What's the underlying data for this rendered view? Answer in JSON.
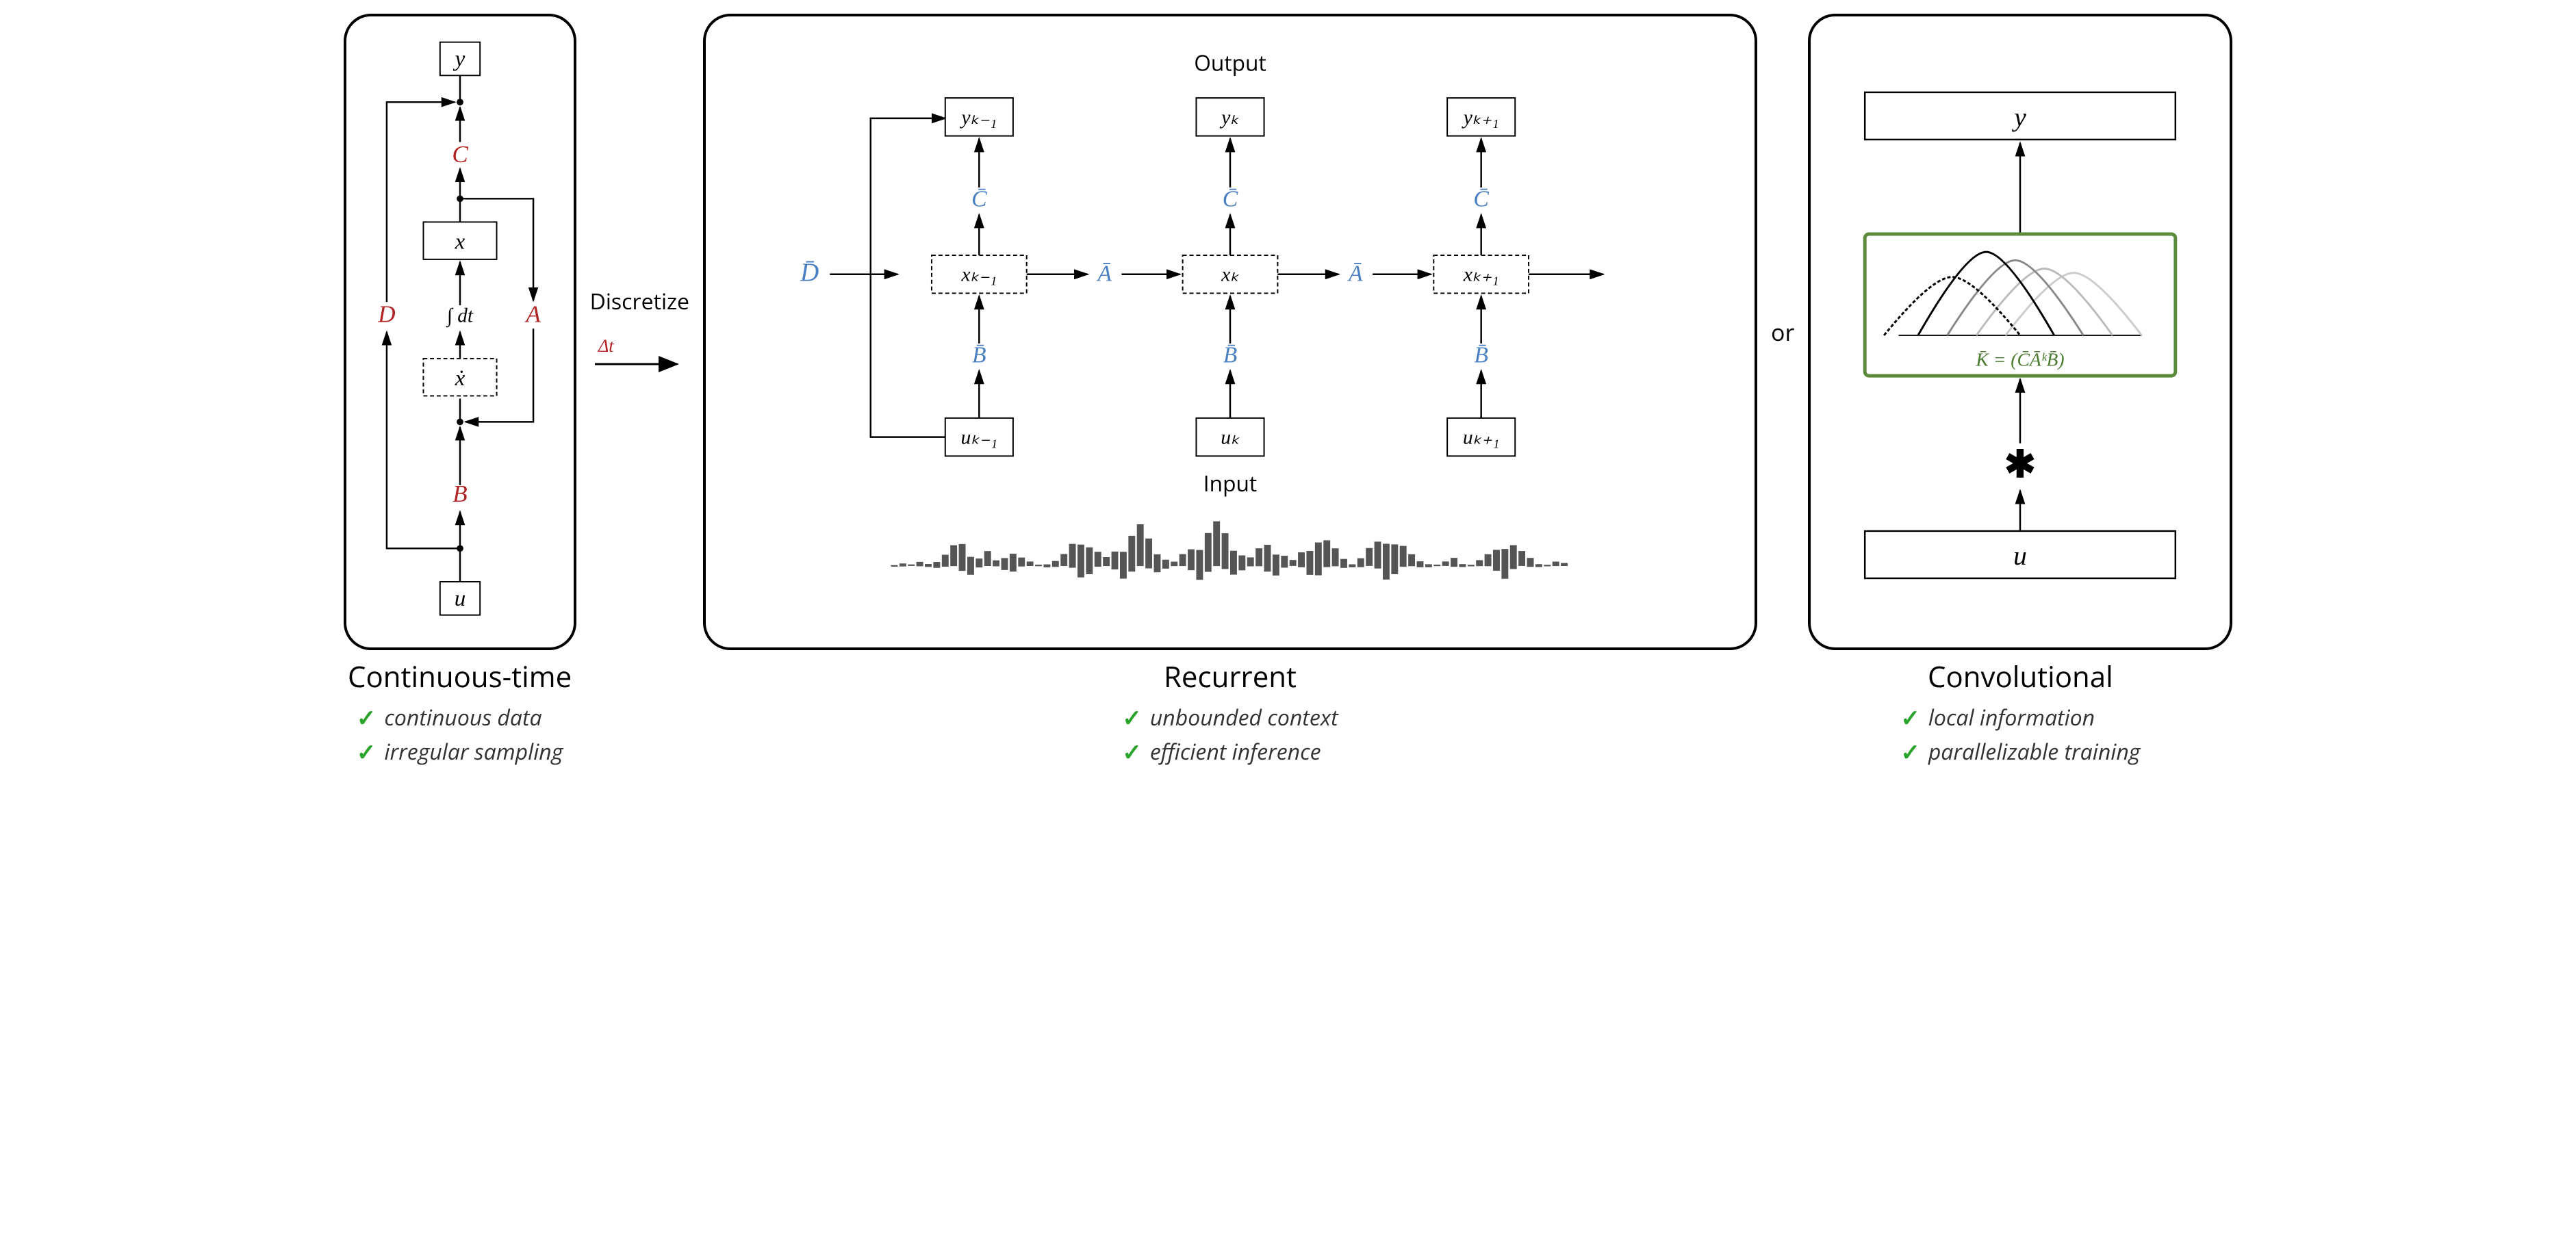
{
  "colors": {
    "black": "#000000",
    "red": "#b22222",
    "blue": "#4a7fc1",
    "green": "#4a7a2e",
    "grey": "#555555",
    "ltgrey": "#bbbbbb",
    "checkGreen": "#29a329"
  },
  "panels": {
    "continuous": {
      "title": "Continuous-time",
      "bullets": [
        "continuous data",
        "irregular sampling"
      ],
      "nodes": {
        "y": "y",
        "u": "u",
        "x": "x",
        "xdot": "ẋ",
        "A": "A",
        "B": "B",
        "C": "C",
        "D": "D",
        "integral": "∫ dt"
      }
    },
    "recurrent": {
      "title": "Recurrent",
      "bullets": [
        "unbounded context",
        "efficient inference"
      ],
      "outputLabel": "Output",
      "inputLabel": "Input",
      "Dbar": "D̄",
      "Abar": "Ā",
      "Bbar": "B̄",
      "Cbar": "C̄",
      "y_km1": "yₖ₋₁",
      "y_k": "yₖ",
      "y_kp1": "yₖ₊₁",
      "x_km1": "xₖ₋₁",
      "x_k": "xₖ",
      "x_kp1": "xₖ₊₁",
      "u_km1": "uₖ₋₁",
      "u_k": "uₖ",
      "u_kp1": "uₖ₊₁"
    },
    "convolutional": {
      "title": "Convolutional",
      "bullets": [
        "local information",
        "parallelizable training"
      ],
      "y": "y",
      "u": "u",
      "kernelEq": "K̄ = (C̄ĀᵏB̄)"
    }
  },
  "connectors": {
    "discretize": "Discretize",
    "delta": "Δt",
    "or": "or"
  },
  "waveform": {
    "color": "#555555",
    "values": [
      1,
      2,
      1,
      3,
      2,
      4,
      8,
      14,
      18,
      12,
      6,
      10,
      4,
      8,
      12,
      6,
      3,
      1,
      2,
      4,
      8,
      16,
      22,
      18,
      10,
      6,
      12,
      18,
      24,
      28,
      20,
      12,
      6,
      3,
      8,
      14,
      20,
      26,
      30,
      24,
      16,
      10,
      6,
      12,
      18,
      14,
      8,
      4,
      10,
      16,
      22,
      18,
      12,
      6,
      2,
      6,
      12,
      18,
      24,
      20,
      14,
      8,
      4,
      2,
      1,
      3,
      6,
      2,
      1,
      4,
      8,
      14,
      20,
      16,
      10,
      6,
      2,
      1,
      3,
      2
    ]
  },
  "kernelCurves": {
    "greenBox": "#5a8a3a",
    "curves": [
      {
        "color": "#cccccc",
        "peak": 0.75,
        "center": 0.72,
        "dash": ""
      },
      {
        "color": "#bbbbbb",
        "peak": 0.8,
        "center": 0.6,
        "dash": ""
      },
      {
        "color": "#888888",
        "peak": 0.9,
        "center": 0.48,
        "dash": ""
      },
      {
        "color": "#000000",
        "peak": 1.0,
        "center": 0.36,
        "dash": ""
      },
      {
        "color": "#000000",
        "peak": 0.7,
        "center": 0.22,
        "dash": "5,3"
      }
    ]
  }
}
